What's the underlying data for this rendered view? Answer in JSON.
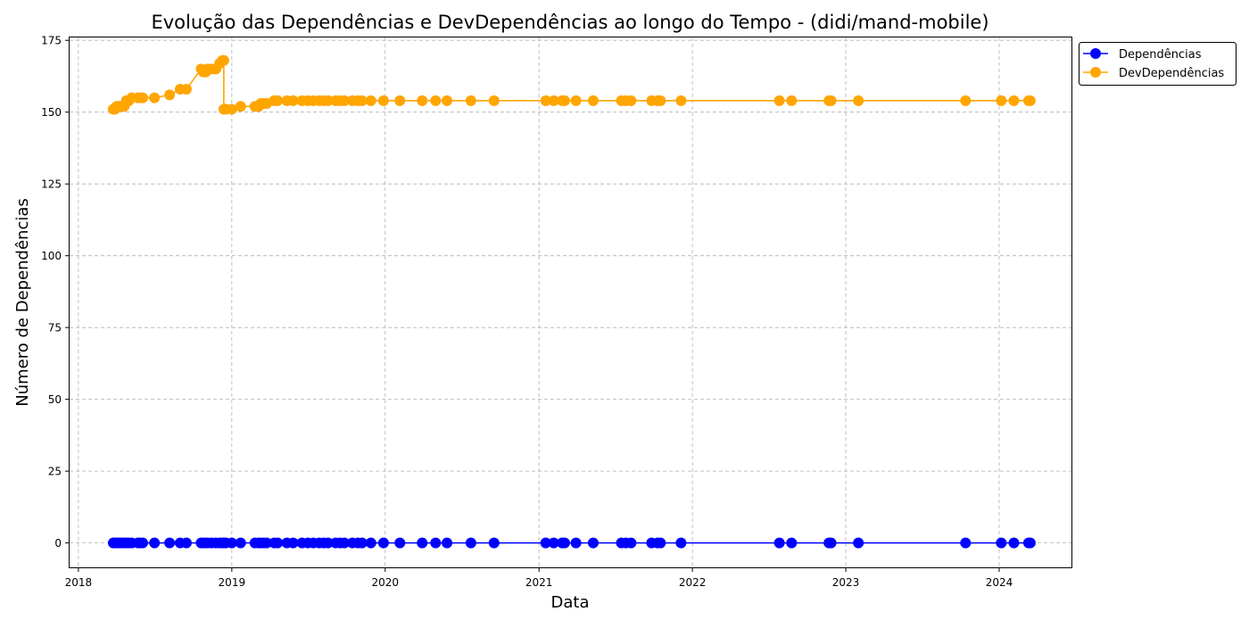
{
  "chart_data": {
    "type": "line",
    "title": "Evolução das Dependências e DevDependências ao longo do Tempo - (didi/mand-mobile)",
    "xlabel": "Data",
    "ylabel": "Número de Dependências",
    "xlim": [
      "2017-12-11",
      "2024-06-21"
    ],
    "ylim": [
      -8.5,
      176
    ],
    "x_ticks": [
      "2018",
      "2019",
      "2020",
      "2021",
      "2022",
      "2023",
      "2024"
    ],
    "y_ticks": [
      0,
      25,
      50,
      75,
      100,
      125,
      150,
      175
    ],
    "grid": true,
    "legend_position": "upper-right-outside",
    "series": [
      {
        "name": "Dependências",
        "color": "#0000ff",
        "marker": "circle",
        "points": [
          [
            "2018-03-25",
            0
          ],
          [
            "2018-03-29",
            0
          ],
          [
            "2018-04-02",
            0
          ],
          [
            "2018-04-06",
            0
          ],
          [
            "2018-04-10",
            0
          ],
          [
            "2018-04-15",
            0
          ],
          [
            "2018-04-20",
            0
          ],
          [
            "2018-04-25",
            0
          ],
          [
            "2018-05-01",
            0
          ],
          [
            "2018-05-08",
            0
          ],
          [
            "2018-05-23",
            0
          ],
          [
            "2018-05-28",
            0
          ],
          [
            "2018-06-03",
            0
          ],
          [
            "2018-07-01",
            0
          ],
          [
            "2018-08-06",
            0
          ],
          [
            "2018-08-31",
            0
          ],
          [
            "2018-09-15",
            0
          ],
          [
            "2018-10-20",
            0
          ],
          [
            "2018-10-25",
            0
          ],
          [
            "2018-10-31",
            0
          ],
          [
            "2018-11-05",
            0
          ],
          [
            "2018-11-14",
            0
          ],
          [
            "2018-11-24",
            0
          ],
          [
            "2018-12-03",
            0
          ],
          [
            "2018-12-10",
            0
          ],
          [
            "2018-12-13",
            0
          ],
          [
            "2018-12-18",
            0
          ],
          [
            "2019-01-01",
            0
          ],
          [
            "2019-01-22",
            0
          ],
          [
            "2019-02-25",
            0
          ],
          [
            "2019-03-06",
            0
          ],
          [
            "2019-03-11",
            0
          ],
          [
            "2019-03-18",
            0
          ],
          [
            "2019-03-25",
            0
          ],
          [
            "2019-04-12",
            0
          ],
          [
            "2019-04-20",
            0
          ],
          [
            "2019-05-12",
            0
          ],
          [
            "2019-05-27",
            0
          ],
          [
            "2019-06-17",
            0
          ],
          [
            "2019-07-01",
            0
          ],
          [
            "2019-07-14",
            0
          ],
          [
            "2019-07-28",
            0
          ],
          [
            "2019-08-08",
            0
          ],
          [
            "2019-08-18",
            0
          ],
          [
            "2019-09-05",
            0
          ],
          [
            "2019-09-16",
            0
          ],
          [
            "2019-09-26",
            0
          ],
          [
            "2019-10-15",
            0
          ],
          [
            "2019-10-28",
            0
          ],
          [
            "2019-11-07",
            0
          ],
          [
            "2019-11-28",
            0
          ],
          [
            "2019-12-28",
            0
          ],
          [
            "2020-02-05",
            0
          ],
          [
            "2020-03-29",
            0
          ],
          [
            "2020-04-30",
            0
          ],
          [
            "2020-05-27",
            0
          ],
          [
            "2020-07-23",
            0
          ],
          [
            "2020-09-16",
            0
          ],
          [
            "2021-01-17",
            0
          ],
          [
            "2021-02-05",
            0
          ],
          [
            "2021-02-25",
            0
          ],
          [
            "2021-03-03",
            0
          ],
          [
            "2021-03-30",
            0
          ],
          [
            "2021-05-10",
            0
          ],
          [
            "2021-07-16",
            0
          ],
          [
            "2021-07-27",
            0
          ],
          [
            "2021-08-08",
            0
          ],
          [
            "2021-09-26",
            0
          ],
          [
            "2021-10-10",
            0
          ],
          [
            "2021-10-17",
            0
          ],
          [
            "2021-12-05",
            0
          ],
          [
            "2022-07-27",
            0
          ],
          [
            "2022-08-25",
            0
          ],
          [
            "2022-11-22",
            0
          ],
          [
            "2022-11-27",
            0
          ],
          [
            "2023-01-31",
            0
          ],
          [
            "2023-10-13",
            0
          ],
          [
            "2024-01-06",
            0
          ],
          [
            "2024-02-05",
            0
          ],
          [
            "2024-03-11",
            0
          ],
          [
            "2024-03-15",
            0
          ]
        ]
      },
      {
        "name": "DevDependências",
        "color": "#ffa500",
        "marker": "circle",
        "points": [
          [
            "2018-03-25",
            151
          ],
          [
            "2018-03-29",
            151
          ],
          [
            "2018-04-02",
            152
          ],
          [
            "2018-04-06",
            152
          ],
          [
            "2018-04-10",
            152
          ],
          [
            "2018-04-15",
            152
          ],
          [
            "2018-04-20",
            152
          ],
          [
            "2018-04-25",
            154
          ],
          [
            "2018-05-01",
            154
          ],
          [
            "2018-05-08",
            155
          ],
          [
            "2018-05-23",
            155
          ],
          [
            "2018-05-28",
            155
          ],
          [
            "2018-06-03",
            155
          ],
          [
            "2018-07-01",
            155
          ],
          [
            "2018-08-06",
            156
          ],
          [
            "2018-08-31",
            158
          ],
          [
            "2018-09-15",
            158
          ],
          [
            "2018-10-20",
            165
          ],
          [
            "2018-10-25",
            164
          ],
          [
            "2018-10-31",
            164
          ],
          [
            "2018-11-05",
            165
          ],
          [
            "2018-11-14",
            165
          ],
          [
            "2018-11-24",
            165
          ],
          [
            "2018-12-03",
            167
          ],
          [
            "2018-12-10",
            168
          ],
          [
            "2018-12-13",
            168
          ],
          [
            "2018-12-13",
            151
          ],
          [
            "2018-12-18",
            151
          ],
          [
            "2019-01-01",
            151
          ],
          [
            "2019-01-22",
            152
          ],
          [
            "2019-02-25",
            152
          ],
          [
            "2019-03-06",
            152
          ],
          [
            "2019-03-11",
            153
          ],
          [
            "2019-03-18",
            153
          ],
          [
            "2019-03-25",
            153
          ],
          [
            "2019-04-12",
            154
          ],
          [
            "2019-04-20",
            154
          ],
          [
            "2019-05-12",
            154
          ],
          [
            "2019-05-27",
            154
          ],
          [
            "2019-06-17",
            154
          ],
          [
            "2019-07-01",
            154
          ],
          [
            "2019-07-14",
            154
          ],
          [
            "2019-07-28",
            154
          ],
          [
            "2019-08-08",
            154
          ],
          [
            "2019-08-18",
            154
          ],
          [
            "2019-09-05",
            154
          ],
          [
            "2019-09-16",
            154
          ],
          [
            "2019-09-26",
            154
          ],
          [
            "2019-10-15",
            154
          ],
          [
            "2019-10-28",
            154
          ],
          [
            "2019-11-07",
            154
          ],
          [
            "2019-11-28",
            154
          ],
          [
            "2019-12-28",
            154
          ],
          [
            "2020-02-05",
            154
          ],
          [
            "2020-03-29",
            154
          ],
          [
            "2020-04-30",
            154
          ],
          [
            "2020-05-27",
            154
          ],
          [
            "2020-07-23",
            154
          ],
          [
            "2020-09-16",
            154
          ],
          [
            "2021-01-17",
            154
          ],
          [
            "2021-02-05",
            154
          ],
          [
            "2021-02-25",
            154
          ],
          [
            "2021-03-03",
            154
          ],
          [
            "2021-03-30",
            154
          ],
          [
            "2021-05-10",
            154
          ],
          [
            "2021-07-16",
            154
          ],
          [
            "2021-07-27",
            154
          ],
          [
            "2021-08-08",
            154
          ],
          [
            "2021-09-26",
            154
          ],
          [
            "2021-10-10",
            154
          ],
          [
            "2021-10-17",
            154
          ],
          [
            "2021-12-05",
            154
          ],
          [
            "2022-07-27",
            154
          ],
          [
            "2022-08-25",
            154
          ],
          [
            "2022-11-22",
            154
          ],
          [
            "2022-11-27",
            154
          ],
          [
            "2023-01-31",
            154
          ],
          [
            "2023-10-13",
            154
          ],
          [
            "2024-01-06",
            154
          ],
          [
            "2024-02-05",
            154
          ],
          [
            "2024-03-11",
            154
          ],
          [
            "2024-03-15",
            154
          ]
        ]
      }
    ]
  }
}
